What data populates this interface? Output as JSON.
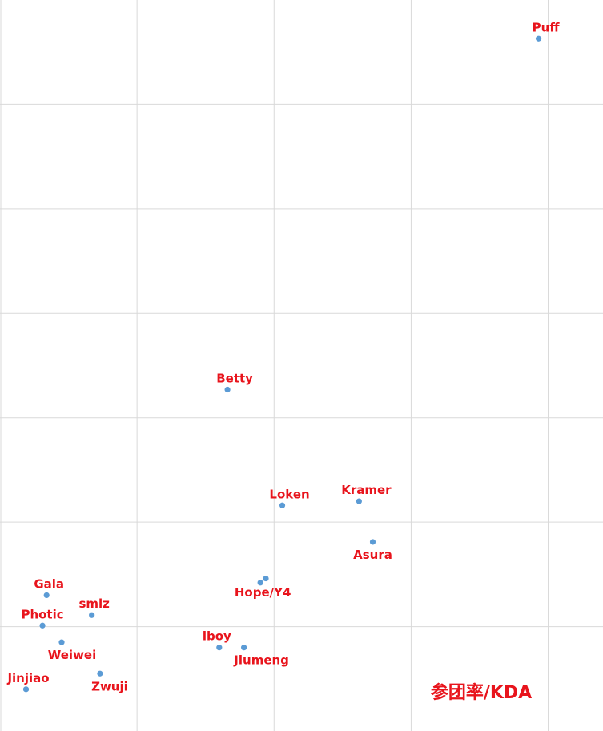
{
  "chart_data": {
    "type": "scatter",
    "title": "",
    "xlabel": "",
    "ylabel": "",
    "grid": true,
    "xlim": [
      0,
      4.4
    ],
    "ylim": [
      0,
      7
    ],
    "marker_color": "#5b9bd5",
    "label_color": "#e8141c",
    "annotation": "参团率/KDA",
    "points": [
      {
        "label": "Puff",
        "x": 3.93,
        "y": 6.63,
        "label_pos": "above"
      },
      {
        "label": "Betty",
        "x": 1.66,
        "y": 3.27,
        "label_pos": "above"
      },
      {
        "label": "Loken",
        "x": 2.06,
        "y": 2.16,
        "label_pos": "above"
      },
      {
        "label": "Kramer",
        "x": 2.62,
        "y": 2.2,
        "label_pos": "above"
      },
      {
        "label": "Asura",
        "x": 2.72,
        "y": 1.81,
        "label_pos": "below"
      },
      {
        "label": "Hope/Y4",
        "x": 1.9,
        "y": 1.42,
        "label_pos": "below"
      },
      {
        "label": "",
        "x": 1.94,
        "y": 1.46,
        "label_pos": "none"
      },
      {
        "label": "Gala",
        "x": 0.34,
        "y": 1.3,
        "label_pos": "above"
      },
      {
        "label": "smlz",
        "x": 0.67,
        "y": 1.11,
        "label_pos": "above"
      },
      {
        "label": "Photic",
        "x": 0.31,
        "y": 1.01,
        "label_pos": "above"
      },
      {
        "label": "Weiwei",
        "x": 0.45,
        "y": 0.85,
        "label_pos": "below"
      },
      {
        "label": "iboy",
        "x": 1.6,
        "y": 0.8,
        "label_pos": "above"
      },
      {
        "label": "Jiumeng",
        "x": 1.78,
        "y": 0.8,
        "label_pos": "below"
      },
      {
        "label": "Zwuji",
        "x": 0.73,
        "y": 0.55,
        "label_pos": "below"
      },
      {
        "label": "Jinjiao",
        "x": 0.19,
        "y": 0.4,
        "label_pos": "above"
      }
    ]
  }
}
